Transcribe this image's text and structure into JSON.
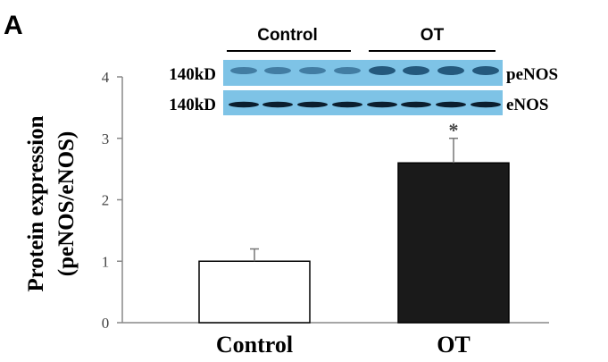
{
  "panel_label": "A",
  "chart_data": {
    "type": "bar",
    "categories": [
      "Control",
      "OT"
    ],
    "values": [
      1.0,
      2.6
    ],
    "error": [
      0.2,
      0.4
    ],
    "significance": [
      "",
      "*"
    ],
    "ylabel_line1": "Protein expression",
    "ylabel_line2": "(peNOS/eNOS)",
    "ylim": [
      0,
      4
    ],
    "yticks": [
      "0",
      "1",
      "2",
      "3",
      "4"
    ],
    "bar_colors": [
      "#ffffff",
      "#1a1a1a"
    ],
    "grid": false
  },
  "blot": {
    "groups": [
      "Control",
      "OT"
    ],
    "rows": [
      {
        "size": "140kD",
        "name": "peNOS"
      },
      {
        "size": "140kD",
        "name": "eNOS"
      }
    ],
    "background_color": "#7ec3e6",
    "lanes_per_group": 4
  }
}
